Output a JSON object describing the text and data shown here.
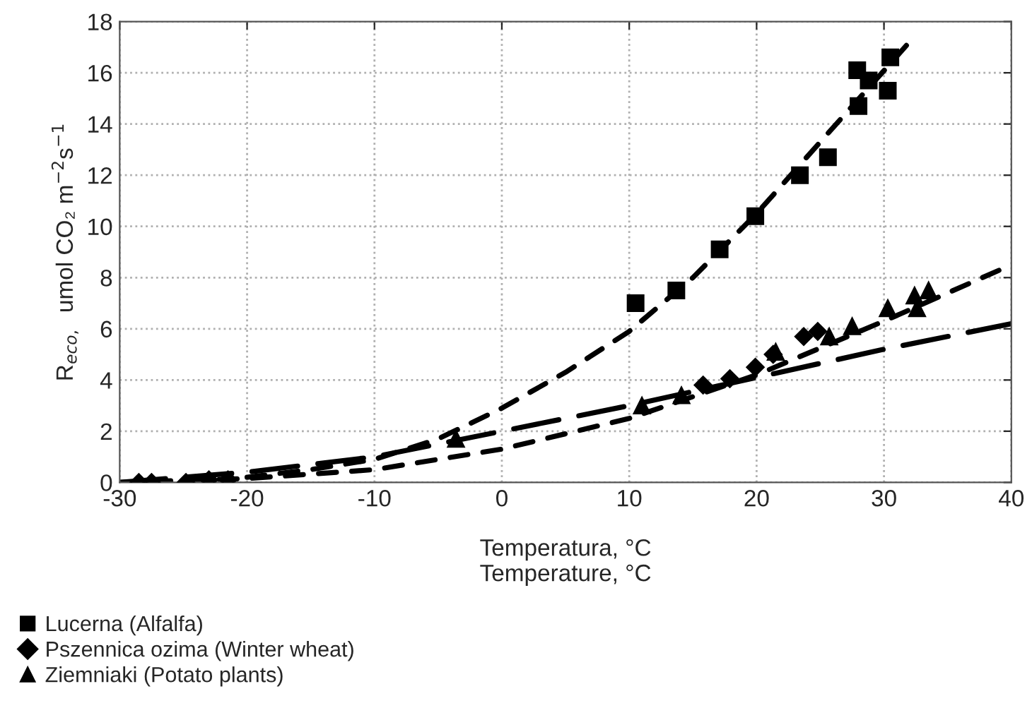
{
  "chart_data": {
    "type": "scatter",
    "xlabel": "Temperatura, °C\nTemperature, °C",
    "ylabel": "R$_{eco,}$  umol CO₂ m$^{−2}$s$^{−1}$",
    "xlim": [
      -30,
      40
    ],
    "ylim": [
      0,
      18
    ],
    "xticks": [
      -30,
      -20,
      -10,
      0,
      10,
      20,
      30,
      40
    ],
    "yticks": [
      0,
      2,
      4,
      6,
      8,
      10,
      12,
      14,
      16,
      18
    ],
    "grid": true,
    "legend": "bottom",
    "series": [
      {
        "name": "Lucerna (Alfalfa)",
        "marker": "square",
        "color": "#000000",
        "x": [
          10.5,
          13.7,
          17.1,
          19.9,
          23.4,
          25.6,
          28.0,
          27.9,
          28.8,
          30.3,
          30.5
        ],
        "values": [
          7.0,
          7.5,
          9.1,
          10.4,
          12.0,
          12.7,
          14.7,
          16.1,
          15.7,
          15.3,
          16.6
        ]
      },
      {
        "name": "Pszennica ozima (Winter wheat)",
        "marker": "diamond",
        "color": "#000000",
        "x": [
          -28.5,
          -27.5,
          -24.8,
          -23.0,
          -21.5,
          15.8,
          17.9,
          19.9,
          21.3,
          23.7,
          24.8
        ],
        "values": [
          0.0,
          0.0,
          0.0,
          0.1,
          0.1,
          3.8,
          4.05,
          4.5,
          5.0,
          5.7,
          5.9
        ]
      },
      {
        "name": "Ziemniaki (Potato plants)",
        "marker": "triangle",
        "color": "#000000",
        "x": [
          -3.6,
          11.0,
          14.1,
          21.5,
          25.7,
          27.5,
          30.3,
          32.6,
          32.4,
          33.5
        ],
        "values": [
          1.7,
          3.0,
          3.4,
          5.1,
          5.7,
          6.1,
          6.8,
          6.8,
          7.3,
          7.5
        ]
      },
      {
        "type": "line",
        "line_style": "dotted",
        "marker": "none",
        "color": "#000000",
        "x": [
          -20,
          -15,
          -10,
          -5,
          0,
          5,
          10,
          15,
          20,
          25,
          32
        ],
        "values": [
          0.2,
          0.5,
          0.9,
          1.7,
          2.9,
          4.3,
          5.9,
          8.0,
          10.5,
          13.3,
          17.2
        ]
      },
      {
        "type": "line",
        "line_style": "dotted",
        "marker": "none",
        "color": "#000000",
        "x": [
          -30,
          -20,
          -10,
          0,
          10,
          20,
          30,
          40
        ],
        "values": [
          0.0,
          0.15,
          0.5,
          1.3,
          2.5,
          4.2,
          6.3,
          8.5
        ]
      },
      {
        "type": "line",
        "line_style": "dashed",
        "marker": "none",
        "color": "#000000",
        "x": [
          -30,
          -20,
          -10,
          0,
          10,
          20,
          30,
          40
        ],
        "values": [
          0.0,
          0.4,
          1.0,
          2.0,
          3.0,
          4.1,
          5.2,
          6.2
        ]
      }
    ]
  }
}
